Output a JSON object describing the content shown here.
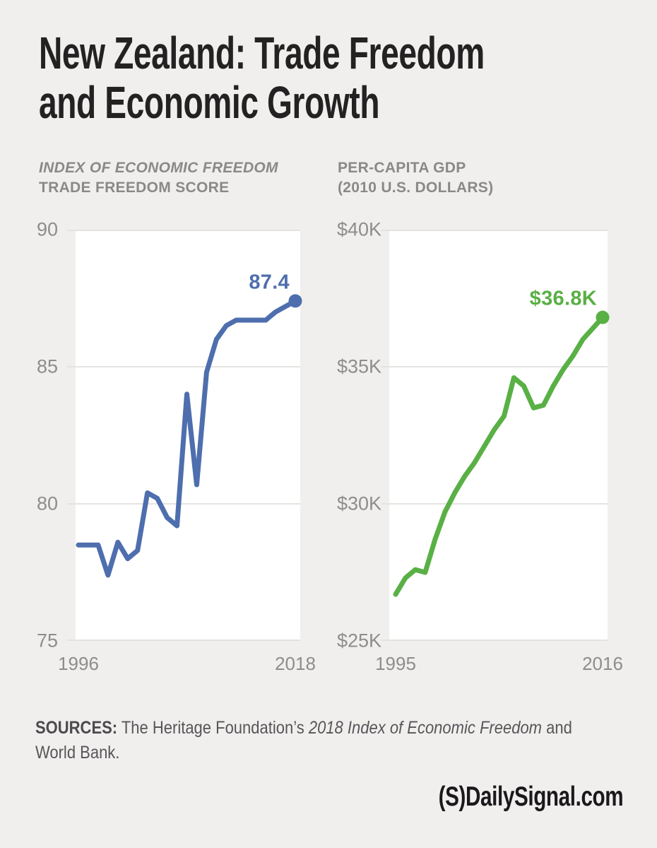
{
  "page": {
    "title_line1": "New Zealand: Trade Freedom",
    "title_line2": "and Economic Growth",
    "background": "#f0efed"
  },
  "colors": {
    "title_text": "#242122",
    "header_gray": "#8a8988",
    "axis_gray": "#8d8d8d",
    "gridline": "#e4e3e0",
    "plot_background": "#ffffff",
    "trade_freedom_blue": "#4e6eae",
    "gdp_green": "#59b045"
  },
  "chart_data": [
    {
      "type": "line",
      "title_line1": "INDEX OF ECONOMIC FREEDOM",
      "title_line2": "TRADE FREEDOM SCORE",
      "color": "#4e6eae",
      "x": [
        1996,
        1997,
        1998,
        1999,
        2000,
        2001,
        2002,
        2003,
        2004,
        2005,
        2006,
        2007,
        2008,
        2009,
        2010,
        2011,
        2012,
        2013,
        2014,
        2015,
        2016,
        2017,
        2018
      ],
      "values": [
        78.5,
        78.5,
        78.5,
        77.4,
        78.6,
        78.0,
        78.3,
        80.4,
        80.2,
        79.5,
        79.2,
        84.0,
        80.7,
        84.8,
        86.0,
        86.5,
        86.7,
        86.7,
        86.7,
        86.7,
        87.0,
        87.2,
        87.4
      ],
      "ylim": [
        75,
        90
      ],
      "yticks": [
        {
          "value": 90,
          "label": "90"
        },
        {
          "value": 85,
          "label": "85"
        },
        {
          "value": 80,
          "label": "80"
        },
        {
          "value": 75,
          "label": "75"
        }
      ],
      "x_axis_labels": [
        {
          "x": 1996,
          "label": "1996"
        },
        {
          "x": 2018,
          "label": "2018"
        }
      ],
      "end_label": "87.4",
      "grid": true,
      "legend": "none"
    },
    {
      "type": "line",
      "title_line1": "PER-CAPITA GDP",
      "title_line2": "(2010 U.S. DOLLARS)",
      "color": "#59b045",
      "x": [
        1995,
        1996,
        1997,
        1998,
        1999,
        2000,
        2001,
        2002,
        2003,
        2004,
        2005,
        2006,
        2007,
        2008,
        2009,
        2010,
        2011,
        2012,
        2013,
        2014,
        2015,
        2016
      ],
      "values": [
        26.7,
        27.3,
        27.6,
        27.5,
        28.7,
        29.7,
        30.4,
        31.0,
        31.5,
        32.1,
        32.7,
        33.2,
        34.6,
        34.3,
        33.5,
        33.6,
        34.3,
        34.9,
        35.4,
        36.0,
        36.4,
        36.8
      ],
      "ylim": [
        25,
        40
      ],
      "yticks": [
        {
          "value": 40,
          "label": "$40K"
        },
        {
          "value": 35,
          "label": "$35K"
        },
        {
          "value": 30,
          "label": "$30K"
        },
        {
          "value": 25,
          "label": "$25K"
        }
      ],
      "x_axis_labels": [
        {
          "x": 1995,
          "label": "1995"
        },
        {
          "x": 2016,
          "label": "2016"
        }
      ],
      "end_label": "$36.8K",
      "grid": true,
      "legend": "none"
    }
  ],
  "sources": {
    "label": "SOURCES:",
    "text_before_italic": " The Heritage Foundation’s ",
    "italic_text": "2018 Index of Economic Freedom",
    "text_after_italic": " and World Bank."
  },
  "logo": {
    "mark": "(S)",
    "text": "DailySignal.com"
  }
}
